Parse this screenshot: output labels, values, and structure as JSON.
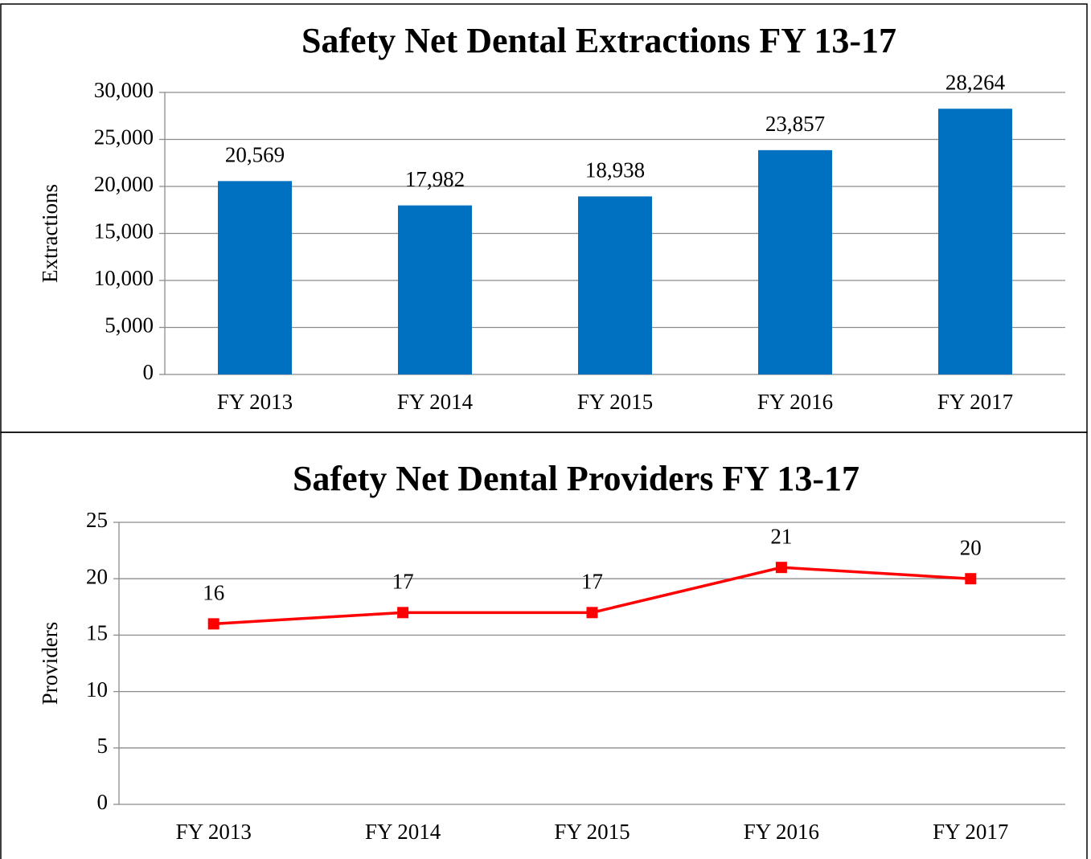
{
  "chart_data": [
    {
      "type": "bar",
      "title": "Safety Net Dental Extractions FY 13-17",
      "y_label": "Extractions",
      "categories": [
        "FY 2013",
        "FY 2014",
        "FY 2015",
        "FY 2016",
        "FY 2017"
      ],
      "values": [
        20569,
        17982,
        18938,
        23857,
        28264
      ],
      "value_labels": [
        "20,569",
        "17,982",
        "18,938",
        "23,857",
        "28,264"
      ],
      "color": "#0070c0",
      "ylim": [
        0,
        30000
      ],
      "yticks": [
        0,
        {
          "value": 5000,
          "label": "5,000"
        },
        {
          "value": 10000,
          "label": "10,000"
        },
        {
          "value": 15000,
          "label": "15,000"
        },
        {
          "value": 20000,
          "label": "20,000"
        },
        {
          "value": 25000,
          "label": "25,000"
        },
        {
          "value": 30000,
          "label": "30,000"
        }
      ],
      "grid": true
    },
    {
      "type": "line",
      "title": "Safety Net Dental Providers FY 13-17",
      "y_label": "Providers",
      "categories": [
        "FY 2013",
        "FY 2014",
        "FY 2015",
        "FY 2016",
        "FY 2017"
      ],
      "values": [
        16,
        17,
        17,
        21,
        20
      ],
      "color": "#ff0000",
      "ylim": [
        0,
        25
      ],
      "yticks": [
        0,
        5,
        10,
        15,
        20,
        25
      ],
      "grid": true
    }
  ]
}
